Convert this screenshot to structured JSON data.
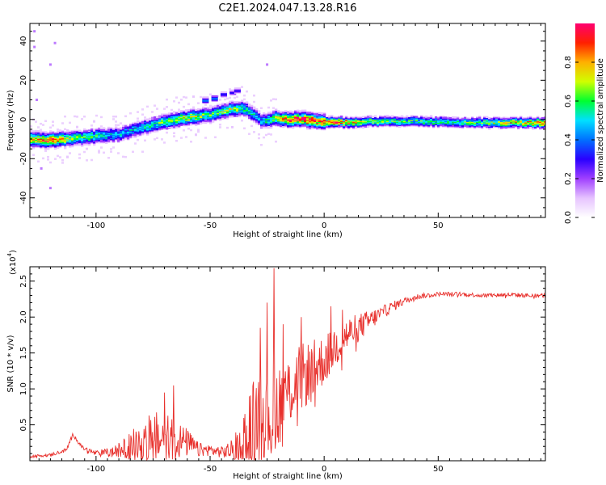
{
  "title": "C2E1.2024.047.13.28.R16",
  "colors": {
    "snr_line": "#e8302c",
    "colormap": [
      "#ffffff",
      "#e6c3ff",
      "#a040ff",
      "#2a00ff",
      "#0070ff",
      "#00e0ff",
      "#00ff30",
      "#d0ff00",
      "#ffb000",
      "#ff2000",
      "#ff0070"
    ]
  },
  "chart_data": [
    {
      "type": "heatmap",
      "xlabel": "Height of straight line (km)",
      "ylabel": "Frequency (Hz)",
      "xlim": [
        -129,
        97
      ],
      "ylim": [
        -50,
        49
      ],
      "xticks": [
        -100,
        -50,
        0,
        50
      ],
      "xtick_labels": [
        "-100",
        "-50",
        "0",
        "50"
      ],
      "yticks": [
        -40,
        -20,
        0,
        20,
        40
      ],
      "ytick_labels": [
        "-40",
        "-20",
        "0",
        "20",
        "40"
      ],
      "ridge": {
        "x": [
          -129,
          -120,
          -110,
          -100,
          -90,
          -80,
          -70,
          -60,
          -50,
          -42,
          -36,
          -32,
          -28,
          -22,
          -15,
          -8,
          0,
          10,
          20,
          40,
          60,
          80,
          97
        ],
        "y": [
          -10,
          -10.5,
          -9.5,
          -8.5,
          -7.5,
          -4,
          -1,
          1,
          2.5,
          5,
          6,
          3,
          -1,
          0.5,
          0,
          0,
          -1,
          -1.5,
          -1,
          -1,
          -1.5,
          -1.5,
          -1.5
        ],
        "amp": [
          0.75,
          0.85,
          0.6,
          0.55,
          0.45,
          0.5,
          0.6,
          0.7,
          0.55,
          0.65,
          0.55,
          0.5,
          0.45,
          0.65,
          0.85,
          0.9,
          0.85,
          0.8,
          0.6,
          0.55,
          0.55,
          0.7,
          0.85
        ]
      },
      "side_branch": {
        "x": [
          -52,
          -48,
          -44,
          -40,
          -38
        ],
        "y": [
          10,
          11,
          13,
          14,
          15
        ],
        "amp": [
          0.45,
          0.4,
          0.35,
          0.3,
          0.3
        ]
      },
      "outliers": [
        {
          "x": -127,
          "y": 45
        },
        {
          "x": -127,
          "y": 37
        },
        {
          "x": -118,
          "y": 39
        },
        {
          "x": -120,
          "y": 28
        },
        {
          "x": -25,
          "y": 28
        },
        {
          "x": -126,
          "y": 10
        },
        {
          "x": -124,
          "y": -25
        },
        {
          "x": -120,
          "y": -35
        }
      ]
    },
    {
      "type": "colorbar",
      "label": "Normalized spectral amplitude",
      "range": [
        0.0,
        1.0
      ],
      "ticks": [
        0.0,
        0.2,
        0.4,
        0.6,
        0.8
      ],
      "tick_labels": [
        "0.0",
        "0.2",
        "0.4",
        "0.6",
        "0.8"
      ]
    },
    {
      "type": "line",
      "xlabel": "Height of straight line (km)",
      "ylabel": "SNR (10 * v/v)",
      "multiplier_label": "(x10",
      "multiplier_exp": "4",
      "xlim": [
        -129,
        97
      ],
      "ylim": [
        0,
        2.7
      ],
      "xticks": [
        -100,
        -50,
        0,
        50
      ],
      "xtick_labels": [
        "-100",
        "-50",
        "0",
        "50"
      ],
      "yticks": [
        0.5,
        1.0,
        1.5,
        2.0,
        2.5
      ],
      "ytick_labels": [
        "0.5",
        "1.0",
        "1.5",
        "2.0",
        "2.5"
      ],
      "envelope": {
        "x": [
          -129,
          -120,
          -113,
          -110,
          -106,
          -100,
          -92,
          -85,
          -80,
          -75,
          -70,
          -66,
          -60,
          -55,
          -50,
          -45,
          -40,
          -36,
          -32,
          -29,
          -26,
          -23,
          -20,
          -16,
          -12,
          -8,
          -4,
          0,
          5,
          10,
          15,
          20,
          25,
          30,
          35,
          40,
          50,
          60,
          70,
          80,
          90,
          97
        ],
        "base": [
          0.06,
          0.08,
          0.15,
          0.37,
          0.18,
          0.1,
          0.12,
          0.2,
          0.3,
          0.3,
          0.3,
          0.3,
          0.25,
          0.15,
          0.15,
          0.12,
          0.15,
          0.25,
          0.45,
          0.6,
          0.75,
          0.7,
          0.8,
          0.95,
          1.1,
          1.2,
          1.3,
          1.4,
          1.6,
          1.75,
          1.85,
          1.95,
          2.05,
          2.15,
          2.22,
          2.28,
          2.32,
          2.32,
          2.3,
          2.31,
          2.3,
          2.3
        ],
        "amp": [
          0.02,
          0.02,
          0.03,
          0.03,
          0.03,
          0.04,
          0.08,
          0.2,
          0.3,
          0.4,
          0.35,
          0.3,
          0.2,
          0.1,
          0.08,
          0.08,
          0.15,
          0.4,
          0.6,
          0.7,
          0.7,
          0.9,
          0.6,
          0.5,
          0.5,
          0.45,
          0.4,
          0.35,
          0.3,
          0.25,
          0.2,
          0.15,
          0.1,
          0.07,
          0.05,
          0.04,
          0.03,
          0.03,
          0.03,
          0.03,
          0.03,
          0.03
        ]
      },
      "peaks": [
        {
          "x": -66,
          "y": 1.05
        },
        {
          "x": -70,
          "y": 0.95
        },
        {
          "x": -28,
          "y": 1.85
        },
        {
          "x": -25,
          "y": 2.2
        },
        {
          "x": -22,
          "y": 2.68
        },
        {
          "x": -18,
          "y": 1.9
        },
        {
          "x": -10,
          "y": 2.0
        },
        {
          "x": 3,
          "y": 2.15
        },
        {
          "x": 8,
          "y": 2.1
        }
      ]
    }
  ]
}
